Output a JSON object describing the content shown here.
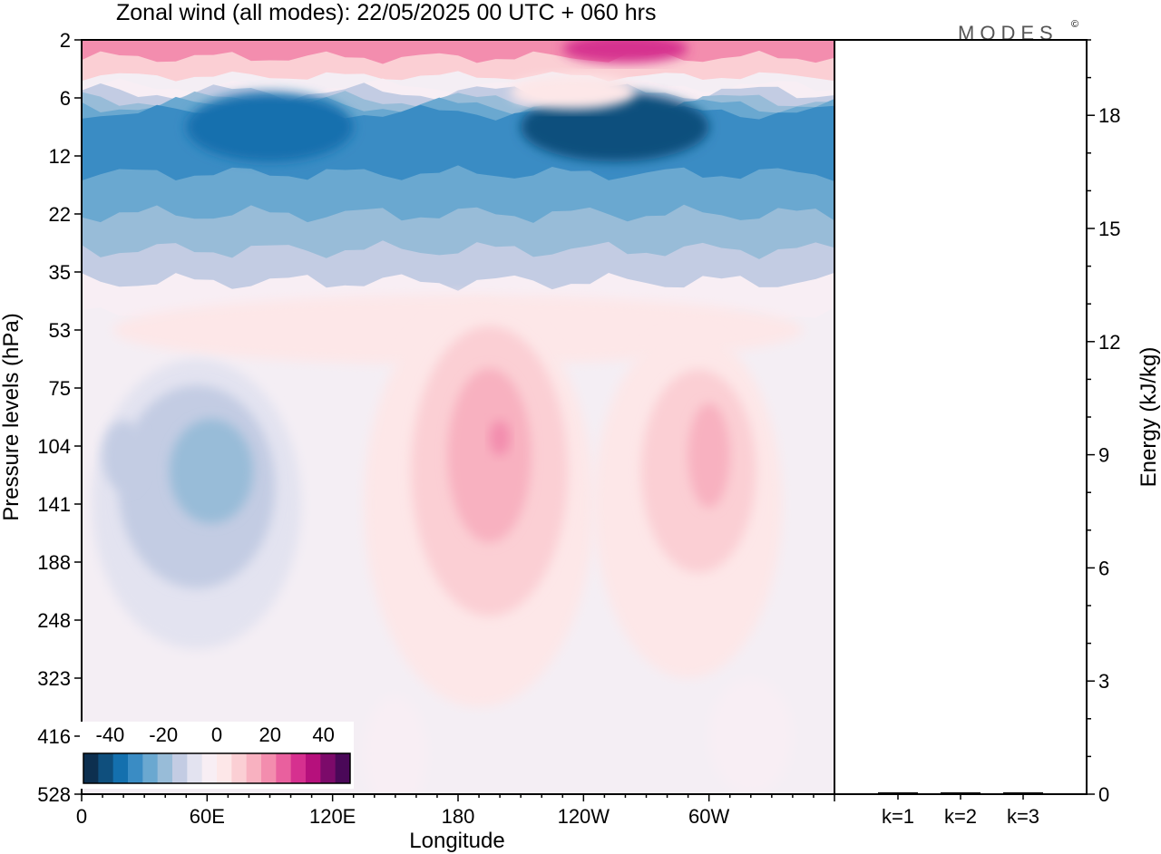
{
  "title": "Zonal wind (all modes):  22/05/2025  00 UTC  + 060 hrs",
  "brand": "MODES",
  "brand_mark": "©",
  "chart_data": [
    {
      "type": "heatmap",
      "title": "Zonal wind (all modes):  22/05/2025  00 UTC  + 060 hrs",
      "xlabel": "Longitude",
      "ylabel": "Pressure levels (hPa)",
      "x_ticks": [
        "0",
        "60E",
        "120E",
        "180",
        "120W",
        "60W"
      ],
      "x_tick_values": [
        0,
        60,
        120,
        180,
        240,
        300
      ],
      "xlim": [
        0,
        360
      ],
      "y_ticks": [
        "2",
        "6",
        "12",
        "22",
        "35",
        "53",
        "75",
        "104",
        "141",
        "188",
        "248",
        "323",
        "416",
        "528"
      ],
      "y_scale": "categorical levels, 2 hPa at top, 528 hPa at bottom",
      "colorbar": {
        "labels": [
          "-40",
          "-20",
          "0",
          "20",
          "40"
        ],
        "range": [
          -50,
          50
        ],
        "colors": [
          "#0d2f4f",
          "#0f4f7d",
          "#1470ae",
          "#3a8cc4",
          "#6aa8d0",
          "#98bcd8",
          "#c3cce3",
          "#e3e3f0",
          "#f8eef4",
          "#fde7e8",
          "#fbcfd4",
          "#f8b1c0",
          "#f38dae",
          "#e9609e",
          "#d6308f",
          "#b6107c",
          "#7c0a6a",
          "#4a0858"
        ]
      },
      "features": [
        {
          "name": "stratospheric easterly jet",
          "lon_range": [
            0,
            360
          ],
          "levels_hPa": [
            6,
            35
          ],
          "value_range": [
            -45,
            -10
          ]
        },
        {
          "name": "upper westerly band",
          "lon_range": [
            0,
            360
          ],
          "levels_hPa": [
            2,
            4
          ],
          "value_range": [
            5,
            40
          ]
        },
        {
          "name": "easterlies over Indian Ocean",
          "lon_range": [
            10,
            100
          ],
          "levels_hPa": [
            75,
            416
          ],
          "value_range": [
            -20,
            -5
          ]
        },
        {
          "name": "westerly maximum near dateline",
          "lon_range": [
            165,
            210
          ],
          "levels_hPa": [
            53,
            248
          ],
          "value_range": [
            10,
            25
          ]
        },
        {
          "name": "westerly maximum near 60W",
          "lon_range": [
            270,
            320
          ],
          "levels_hPa": [
            75,
            248
          ],
          "value_range": [
            10,
            20
          ]
        }
      ]
    },
    {
      "type": "bar",
      "categories": [
        "k=1",
        "k=2",
        "k=3"
      ],
      "values": [
        0.02,
        0.01,
        0.01
      ],
      "ylabel": "Energy (kJ/kg)",
      "ylim": [
        0,
        20
      ],
      "y_ticks": [
        "0",
        "3",
        "6",
        "9",
        "12",
        "15",
        "18"
      ],
      "y_tick_values": [
        0,
        3,
        6,
        9,
        12,
        15,
        18
      ]
    }
  ]
}
